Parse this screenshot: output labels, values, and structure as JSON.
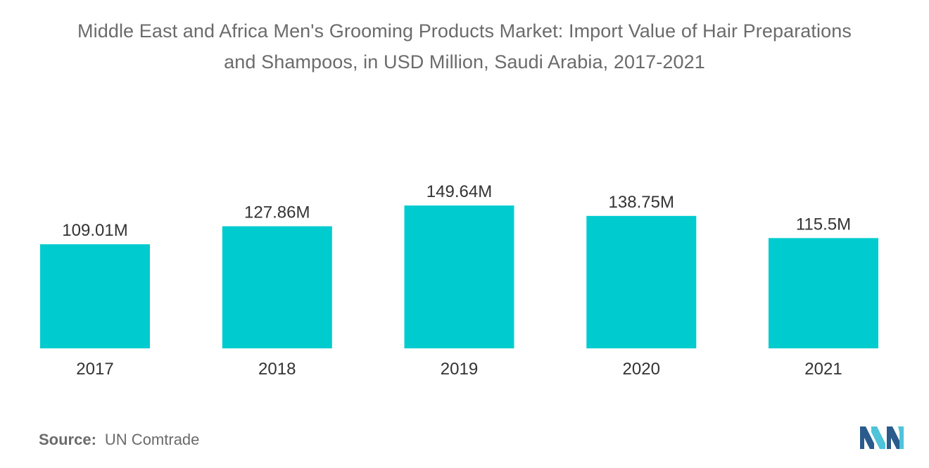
{
  "chart_data": {
    "type": "bar",
    "title_line1": "Middle East and Africa Men's Grooming Products Market: Import Value of Hair Preparations",
    "title_line2": "and Shampoos, in USD Million, Saudi Arabia, 2017-2021",
    "categories": [
      "2017",
      "2018",
      "2019",
      "2020",
      "2021"
    ],
    "values": [
      109.01,
      127.86,
      149.64,
      138.75,
      115.5
    ],
    "data_labels": [
      "109.01M",
      "127.86M",
      "149.64M",
      "138.75M",
      "115.5M"
    ],
    "xlabel": "",
    "ylabel": "",
    "ylim": [
      0,
      149.64
    ],
    "grid": false,
    "bar_color": "#00cccf",
    "label_color": "#333333"
  },
  "source": {
    "label": "Source:",
    "text": "UN Comtrade"
  },
  "colors": {
    "logo_dark": "#2b5b8c",
    "logo_light": "#4fc3d9"
  }
}
